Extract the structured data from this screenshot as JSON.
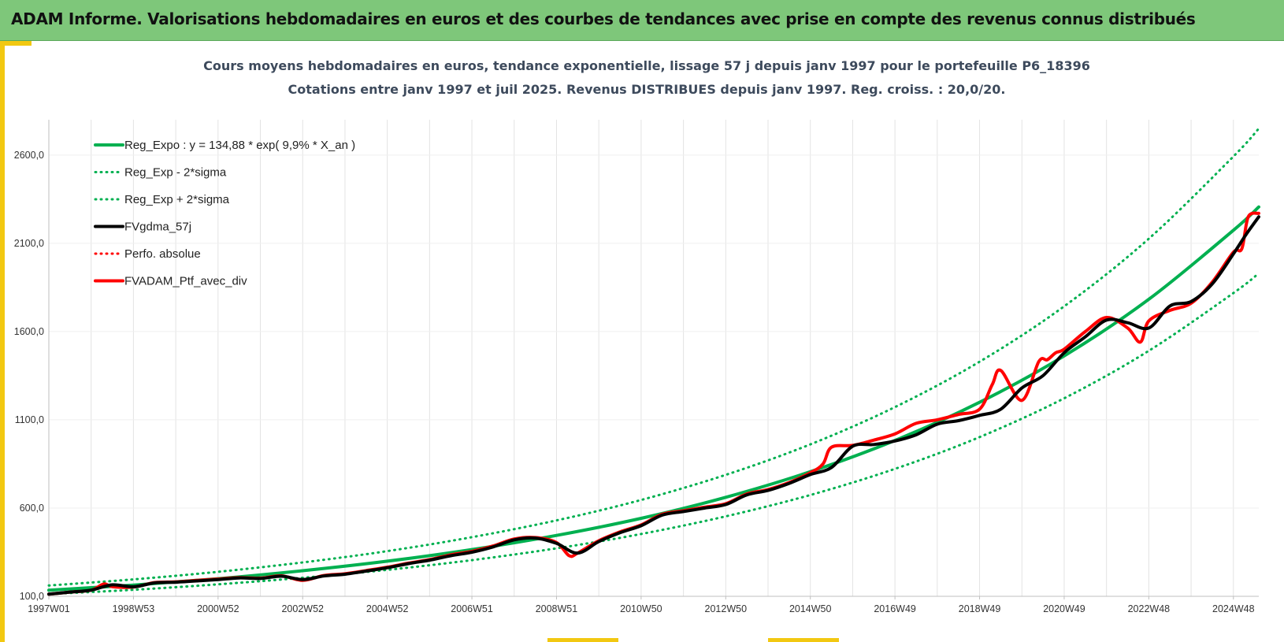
{
  "banner": {
    "title": "ADAM Informe. Valorisations hebdomadaires en euros et des courbes de tendances avec prise en compte des revenus connus distribués"
  },
  "colors": {
    "banner": "#7ec77a",
    "accent": "#f2c811",
    "green": "#00b050",
    "black": "#000000",
    "red": "#ff0000"
  },
  "chart_data": {
    "type": "line",
    "title_line1": "Cours moyens hebdomadaires  en euros, tendance exponentielle, lissage 57 j depuis janv 1997 pour le portefeuille P6_18396",
    "title_line2": "Cotations entre janv 1997 et juil 2025. Revenus DISTRIBUES depuis janv 1997. Reg. croiss. : 20,0/20.",
    "xlim": [
      1997.0,
      2025.6
    ],
    "ylim": [
      100,
      2800
    ],
    "x_ticks": [
      {
        "x": 1997.0,
        "label": "1997W01"
      },
      {
        "x": 1999.0,
        "label": "1998W53"
      },
      {
        "x": 2001.0,
        "label": "2000W52"
      },
      {
        "x": 2003.0,
        "label": "2002W52"
      },
      {
        "x": 2005.0,
        "label": "2004W52"
      },
      {
        "x": 2007.0,
        "label": "2006W51"
      },
      {
        "x": 2009.0,
        "label": "2008W51"
      },
      {
        "x": 2011.0,
        "label": "2010W50"
      },
      {
        "x": 2013.0,
        "label": "2012W50"
      },
      {
        "x": 2015.0,
        "label": "2014W50"
      },
      {
        "x": 2017.0,
        "label": "2016W49"
      },
      {
        "x": 2019.0,
        "label": "2018W49"
      },
      {
        "x": 2021.0,
        "label": "2020W49"
      },
      {
        "x": 2023.0,
        "label": "2022W48"
      },
      {
        "x": 2025.0,
        "label": "2024W48"
      }
    ],
    "y_ticks": [
      {
        "y": 100,
        "label": "100,0"
      },
      {
        "y": 600,
        "label": "600,0"
      },
      {
        "y": 1100,
        "label": "1100,0"
      },
      {
        "y": 1600,
        "label": "1600,0"
      },
      {
        "y": 2100,
        "label": "2100,0"
      },
      {
        "y": 2600,
        "label": "2600,0"
      }
    ],
    "legend_position": "top-left",
    "grid": "vertical",
    "series": [
      {
        "name": "Reg_Expo : y = 134,88 * exp( 9,9% *  X_an )",
        "style": "solid",
        "color": "#00b050",
        "x": [
          1997.0,
          1999.0,
          2001.0,
          2003.0,
          2005.0,
          2007.0,
          2009.0,
          2011.0,
          2013.0,
          2015.0,
          2017.0,
          2019.0,
          2021.0,
          2023.0,
          2025.0,
          2025.6
        ],
        "y": [
          135,
          164,
          200,
          245,
          299,
          365,
          445,
          542,
          661,
          806,
          983,
          1199,
          1462,
          1783,
          2174,
          2306
        ]
      },
      {
        "name": "Reg_Exp - 2*sigma",
        "style": "dotted",
        "color": "#00b050",
        "x": [
          1997.0,
          1999.0,
          2001.0,
          2003.0,
          2005.0,
          2007.0,
          2009.0,
          2011.0,
          2013.0,
          2015.0,
          2017.0,
          2019.0,
          2021.0,
          2023.0,
          2025.0,
          2025.6
        ],
        "y": [
          113,
          137,
          168,
          205,
          250,
          305,
          372,
          453,
          553,
          674,
          822,
          1002,
          1222,
          1491,
          1818,
          1930
        ]
      },
      {
        "name": "Reg_Exp + 2*sigma",
        "style": "dotted",
        "color": "#00b050",
        "x": [
          1997.0,
          1999.0,
          2001.0,
          2003.0,
          2005.0,
          2007.0,
          2009.0,
          2011.0,
          2013.0,
          2015.0,
          2017.0,
          2019.0,
          2021.0,
          2023.0,
          2025.0,
          2025.6
        ],
        "y": [
          161,
          196,
          239,
          292,
          356,
          435,
          530,
          646,
          788,
          961,
          1172,
          1429,
          1743,
          2126,
          2592,
          2750
        ]
      },
      {
        "name": "FVgdma_57j",
        "style": "solid",
        "color": "#000000",
        "x": [
          1997.0,
          1997.5,
          1998.0,
          1998.5,
          1999.0,
          1999.5,
          2000.0,
          2000.5,
          2001.0,
          2001.5,
          2002.0,
          2002.5,
          2003.0,
          2003.5,
          2004.0,
          2004.5,
          2005.0,
          2005.5,
          2006.0,
          2006.5,
          2007.0,
          2007.5,
          2008.0,
          2008.5,
          2009.0,
          2009.5,
          2010.0,
          2010.5,
          2011.0,
          2011.5,
          2012.0,
          2012.5,
          2013.0,
          2013.5,
          2014.0,
          2014.5,
          2015.0,
          2015.5,
          2016.0,
          2016.5,
          2017.0,
          2017.5,
          2018.0,
          2018.5,
          2019.0,
          2019.5,
          2020.0,
          2020.5,
          2021.0,
          2021.5,
          2022.0,
          2022.5,
          2023.0,
          2023.5,
          2024.0,
          2024.5,
          2025.0,
          2025.3,
          2025.6
        ],
        "y": [
          112,
          124,
          135,
          165,
          154,
          176,
          180,
          187,
          195,
          204,
          201,
          214,
          195,
          215,
          225,
          243,
          262,
          285,
          305,
          330,
          350,
          380,
          420,
          430,
          400,
          345,
          410,
          460,
          500,
          560,
          580,
          600,
          620,
          675,
          700,
          740,
          790,
          830,
          950,
          960,
          980,
          1015,
          1075,
          1095,
          1125,
          1160,
          1280,
          1350,
          1480,
          1570,
          1665,
          1650,
          1620,
          1745,
          1770,
          1870,
          2040,
          2150,
          2250
        ]
      },
      {
        "name": "Perfo. absolue",
        "style": "dotted",
        "color": "#ff0000",
        "x": [],
        "y": []
      },
      {
        "name": "FVADAM_Ptf_avec_div",
        "style": "solid",
        "color": "#ff0000",
        "x": [
          1997.0,
          1997.5,
          1998.0,
          1998.3,
          1998.5,
          1999.0,
          1999.5,
          2000.0,
          2000.5,
          2001.0,
          2001.5,
          2002.0,
          2002.5,
          2003.0,
          2003.5,
          2004.0,
          2004.5,
          2005.0,
          2005.5,
          2006.0,
          2006.5,
          2007.0,
          2007.5,
          2008.0,
          2008.5,
          2009.0,
          2009.3,
          2009.5,
          2010.0,
          2010.5,
          2011.0,
          2011.5,
          2012.0,
          2012.5,
          2013.0,
          2013.5,
          2014.0,
          2014.5,
          2015.0,
          2015.3,
          2015.5,
          2016.0,
          2016.5,
          2017.0,
          2017.5,
          2018.0,
          2018.5,
          2019.0,
          2019.3,
          2019.5,
          2020.0,
          2020.4,
          2020.6,
          2020.8,
          2021.0,
          2021.5,
          2022.0,
          2022.5,
          2022.8,
          2023.0,
          2023.5,
          2024.0,
          2024.5,
          2025.0,
          2025.2,
          2025.35,
          2025.6
        ],
        "y": [
          112,
          124,
          135,
          170,
          155,
          152,
          178,
          182,
          190,
          198,
          206,
          203,
          216,
          190,
          218,
          228,
          246,
          265,
          288,
          308,
          335,
          355,
          385,
          425,
          433,
          405,
          330,
          345,
          415,
          465,
          505,
          565,
          585,
          605,
          625,
          680,
          705,
          745,
          800,
          850,
          945,
          955,
          985,
          1020,
          1080,
          1100,
          1130,
          1160,
          1300,
          1380,
          1210,
          1430,
          1440,
          1480,
          1500,
          1600,
          1680,
          1620,
          1540,
          1660,
          1720,
          1760,
          1880,
          2050,
          2070,
          2250,
          2270
        ]
      }
    ]
  }
}
